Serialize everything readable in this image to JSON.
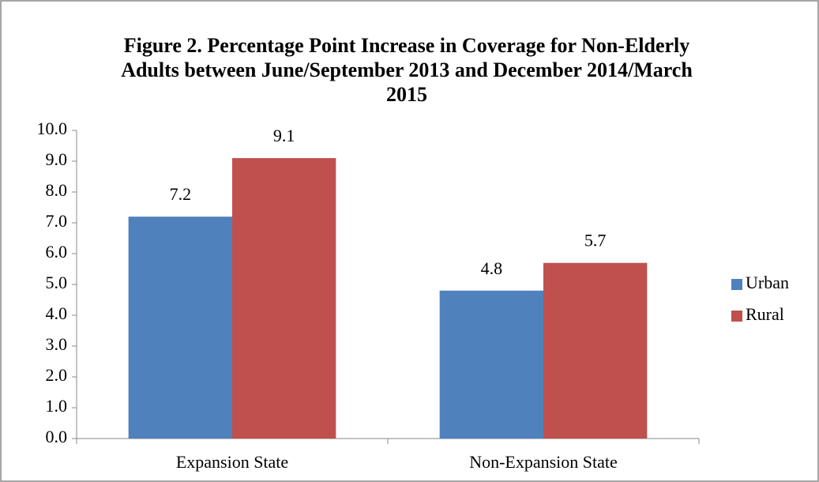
{
  "chart_data": {
    "type": "bar",
    "title": "Figure 2. Percentage Point Increase in Coverage for Non-Elderly Adults between June/September 2013 and December 2014/March 2015",
    "categories": [
      "Expansion State",
      "Non-Expansion State"
    ],
    "series": [
      {
        "name": "Urban",
        "color": "#4f81bd",
        "values": [
          7.2,
          4.8
        ]
      },
      {
        "name": "Rural",
        "color": "#c0504d",
        "values": [
          9.1,
          5.7
        ]
      }
    ],
    "ylim": [
      0,
      10
    ],
    "yticks": [
      {
        "value": 0,
        "label": "0.0"
      },
      {
        "value": 1,
        "label": "1.0"
      },
      {
        "value": 2,
        "label": "2.0"
      },
      {
        "value": 3,
        "label": "3.0"
      },
      {
        "value": 4,
        "label": "4.0"
      },
      {
        "value": 5,
        "label": "5.0"
      },
      {
        "value": 6,
        "label": "6.0"
      },
      {
        "value": 7,
        "label": "7.0"
      },
      {
        "value": 8,
        "label": "8.0"
      },
      {
        "value": 9,
        "label": "9.0"
      },
      {
        "value": 10,
        "label": "10.0"
      }
    ],
    "grid": false,
    "legend": "right"
  }
}
